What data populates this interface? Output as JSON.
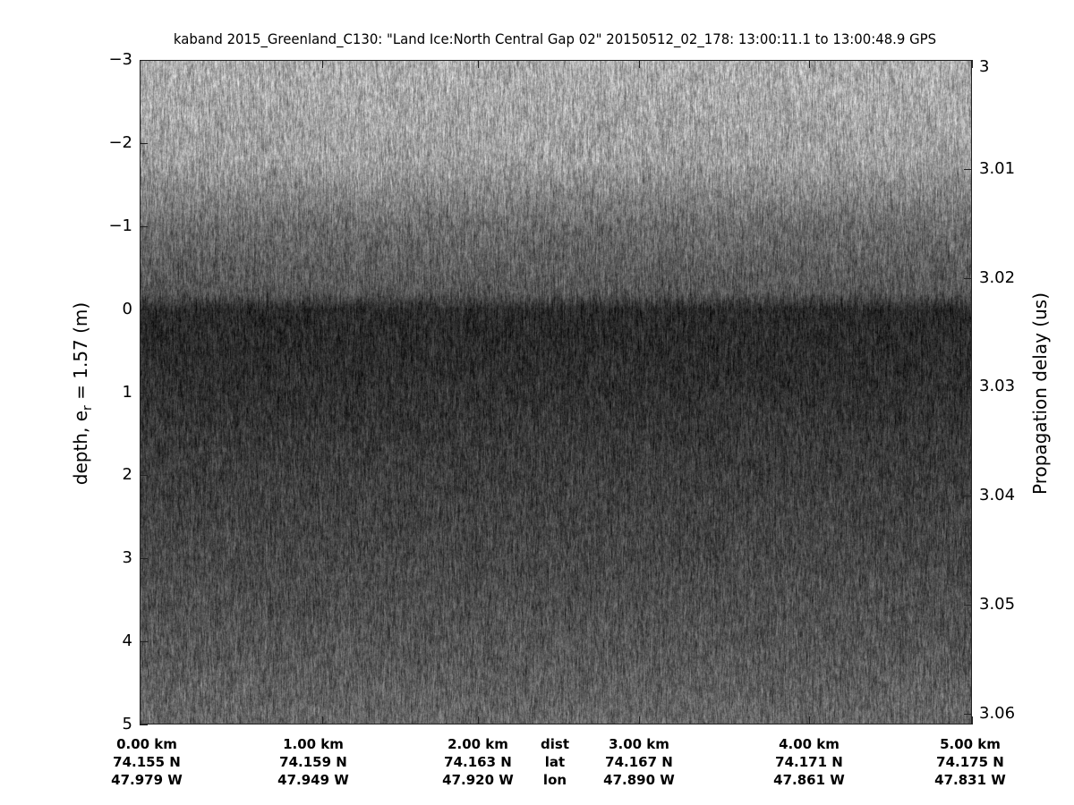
{
  "chart_data": {
    "type": "heatmap",
    "title": "kaband 2015_Greenland_C130: \"Land Ice:North Central Gap 02\"  20150512_02_178: 13:00:11.1 to 13:00:48.9 GPS",
    "colormap": "gray",
    "ylabel_left": {
      "text": "depth, e",
      "sub": "r",
      "rest": " = 1.57 (m)"
    },
    "ylabel_right": "Propagation delay (us)",
    "ylim_left": [
      -3,
      5
    ],
    "ylim_right": [
      3.0,
      3.061
    ],
    "yticks_left": [
      -3,
      -2,
      -1,
      0,
      1,
      2,
      3,
      4,
      5
    ],
    "yticks_left_labels": [
      "−3",
      "−2",
      "−1",
      "0",
      "1",
      "2",
      "3",
      "4",
      "5"
    ],
    "yticks_right": [
      3.0,
      3.01,
      3.02,
      3.03,
      3.04,
      3.05,
      3.06
    ],
    "yticks_right_labels": [
      "3",
      "3.01",
      "3.02",
      "3.03",
      "3.04",
      "3.05",
      "3.06"
    ],
    "x_row_headers": [
      "dist",
      "lat",
      "lon"
    ],
    "xticks": [
      {
        "dist": "0.00 km",
        "lat": "74.155 N",
        "lon": "47.979 W"
      },
      {
        "dist": "1.00 km",
        "lat": "74.159 N",
        "lon": "47.949 W"
      },
      {
        "dist": "2.00 km",
        "lat": "74.163 N",
        "lon": "47.920 W"
      },
      {
        "dist": "3.00 km",
        "lat": "74.167 N",
        "lon": "47.890 W"
      },
      {
        "dist": "4.00 km",
        "lat": "74.171 N",
        "lon": "47.861 W"
      },
      {
        "dist": "5.00 km",
        "lat": "74.175 N",
        "lon": "47.831 W"
      }
    ],
    "surface_depth_m": 0,
    "intensity_profile": {
      "depth_m": [
        -3,
        -1.8,
        -1,
        -0.2,
        0,
        0.8,
        2,
        3,
        4,
        5
      ],
      "gray_level": [
        0.68,
        0.62,
        0.42,
        0.33,
        0.16,
        0.18,
        0.24,
        0.28,
        0.33,
        0.4
      ]
    }
  }
}
